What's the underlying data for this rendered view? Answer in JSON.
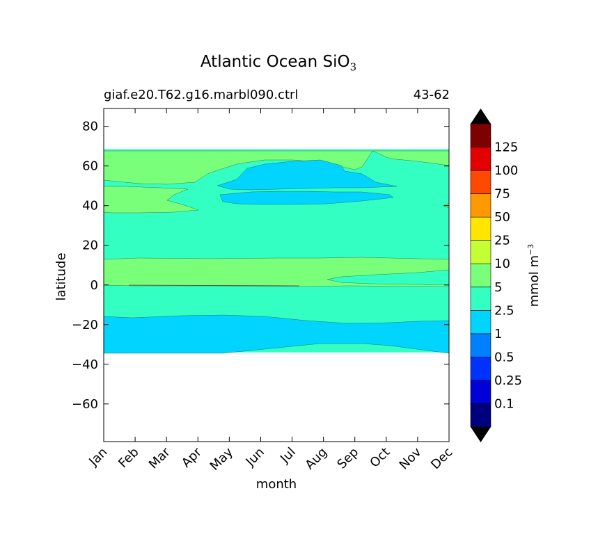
{
  "title_main": "Atlantic Ocean SiO",
  "title_sub": "3",
  "subtitle_left": "giaf.e20.T62.g16.marbl090.ctrl",
  "subtitle_right": "43-62",
  "chart_data": {
    "type": "contourf",
    "xlabel": "month",
    "ylabel": "latitude",
    "x_categories": [
      "Jan",
      "Feb",
      "Mar",
      "Apr",
      "May",
      "Jun",
      "Jul",
      "Aug",
      "Sep",
      "Oct",
      "Nov",
      "Dec"
    ],
    "yticks": [
      80,
      60,
      40,
      20,
      0,
      -20,
      -40,
      -60
    ],
    "ylim": [
      -79,
      89
    ],
    "data_lat_range": [
      -34,
      68.5
    ],
    "colorbar": {
      "label": "mmol m",
      "label_exponent": "−3",
      "levels": [
        "0.1",
        "0.25",
        "0.5",
        "1",
        "2.5",
        "5",
        "10",
        "25",
        "50",
        "75",
        "100",
        "125"
      ],
      "colors": [
        "#00007f",
        "#0000d8",
        "#0032ff",
        "#007fff",
        "#00d4ff",
        "#33ffc3",
        "#7aff7a",
        "#c4ff33",
        "#ffe600",
        "#ff9900",
        "#ff4800",
        "#e30000",
        "#7f0000"
      ],
      "extend": "both"
    },
    "regions": [
      {
        "level_band": "2.5-5",
        "color": "#33ffc3"
      },
      {
        "level_band": "5-10",
        "color": "#7aff7a"
      },
      {
        "level_band": "1-2.5",
        "color": "#00d4ff"
      }
    ]
  }
}
